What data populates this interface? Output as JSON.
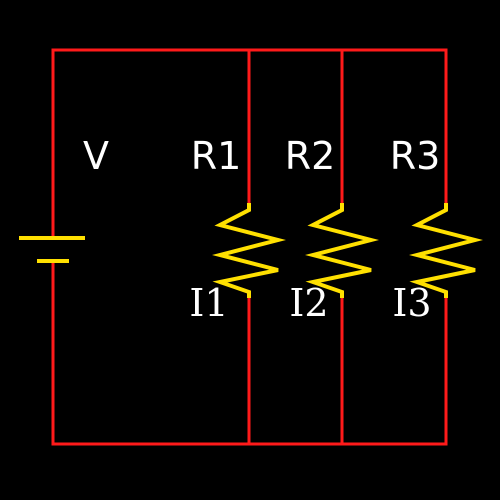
{
  "colors": {
    "background": "#000000",
    "wire": "#ff1a1a",
    "resistor": "#ffe000",
    "battery": "#ffe000",
    "text": "#ffffff"
  },
  "labels": {
    "source": "V",
    "r1": "R1",
    "r2": "R2",
    "r3": "R3",
    "i1": "I1",
    "i2": "I2",
    "i3": "I3"
  }
}
